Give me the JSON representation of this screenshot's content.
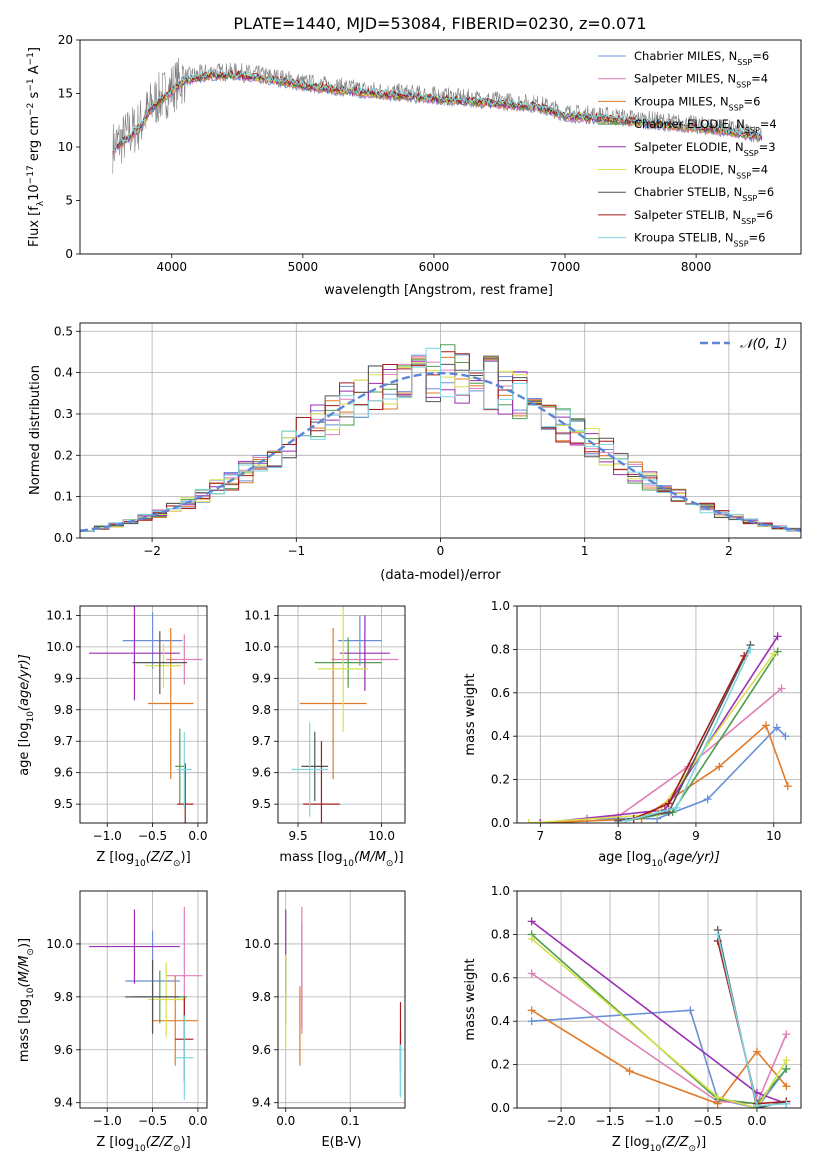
{
  "figure_title": "PLATE=1440, MJD=53084, FIBERID=0230, z=0.071",
  "models": [
    {
      "label": "Chabrier MILES, N",
      "nssp": "6",
      "color": "#6a8fd8"
    },
    {
      "label": "Salpeter MILES, N",
      "nssp": "4",
      "color": "#e07fb6"
    },
    {
      "label": "Kroupa MILES, N",
      "nssp": "6",
      "color": "#e07b2a"
    },
    {
      "label": "Chabrier ELODIE, N",
      "nssp": "4",
      "color": "#4e9e4e"
    },
    {
      "label": "Salpeter ELODIE, N",
      "nssp": "3",
      "color": "#9b2fb5"
    },
    {
      "label": "Kroupa ELODIE, N",
      "nssp": "4",
      "color": "#d8e04a"
    },
    {
      "label": "Chabrier STELIB, N",
      "nssp": "6",
      "color": "#555555"
    },
    {
      "label": "Salpeter STELIB, N",
      "nssp": "6",
      "color": "#a51c1c"
    },
    {
      "label": "Kroupa STELIB, N",
      "nssp": "6",
      "color": "#7fd6e0"
    }
  ],
  "nssp_subscript": "SSP",
  "chart_data": [
    {
      "id": "spectrum",
      "type": "line",
      "title": "",
      "xlabel": "wavelength [Angstrom, rest frame]",
      "ylabel": "Flux [f",
      "ylabel_parts": [
        "Flux [f",
        "λ",
        "10",
        "−17",
        " erg cm",
        "−2",
        " s",
        "−1",
        " A",
        "−1",
        "]"
      ],
      "xlim": [
        3300,
        8800
      ],
      "ylim": [
        0,
        20
      ],
      "xticks": [
        4000,
        5000,
        6000,
        7000,
        8000
      ],
      "yticks": [
        0,
        5,
        10,
        15,
        20
      ],
      "grid": false,
      "legend": "top-right",
      "data_color": "#808080",
      "data_anchors": {
        "x": [
          3550,
          3650,
          3750,
          3850,
          3950,
          4000,
          4100,
          4300,
          4500,
          4800,
          5000,
          5500,
          6000,
          6500,
          6800,
          7000,
          7400,
          7800,
          8200,
          8500
        ],
        "y": [
          10.0,
          11.0,
          12.0,
          14.0,
          15.0,
          15.5,
          16.5,
          17.0,
          17.0,
          16.5,
          16.0,
          15.3,
          14.8,
          14.3,
          14.0,
          13.2,
          12.8,
          12.3,
          11.8,
          11.2
        ]
      }
    },
    {
      "id": "residuals",
      "type": "step",
      "title": "",
      "xlabel": "(data-model)/error",
      "ylabel": "Normed distribution",
      "xlim": [
        -2.5,
        2.5
      ],
      "ylim": [
        0,
        0.52
      ],
      "xticks": [
        -2,
        -1,
        0,
        1,
        2
      ],
      "xticklabels": [
        "−2",
        "−1",
        "0",
        "1",
        "2"
      ],
      "yticks": [
        0.0,
        0.1,
        0.2,
        0.3,
        0.4,
        0.5
      ],
      "yticklabels": [
        "0.0",
        "0.1",
        "0.2",
        "0.3",
        "0.4",
        "0.5"
      ],
      "grid": true,
      "legend": "top-right",
      "gaussian": {
        "label": "𝒩(0, 1)",
        "mean": 0,
        "sigma": 1,
        "color": "#5b87d6"
      },
      "bin_width": 0.1
    },
    {
      "id": "age-vs-Z",
      "type": "errorbar",
      "xlabel": "Z [log",
      "xlabel_parts": [
        "Z [log",
        "10",
        "(Z/Z",
        "⊙",
        ")]"
      ],
      "ylabel": "age  [log",
      "ylabel_parts": [
        "age  [log",
        "10",
        "(age/yr)]"
      ],
      "xlim": [
        -1.3,
        0.1
      ],
      "ylim": [
        9.44,
        10.13
      ],
      "xticks": [
        -1.0,
        -0.5,
        0.0
      ],
      "xticklabels": [
        "−1.0",
        "−0.5",
        "0.0"
      ],
      "yticks": [
        9.5,
        9.6,
        9.7,
        9.8,
        9.9,
        10.0,
        10.1
      ],
      "yticklabels": [
        "9.5",
        "9.6",
        "9.7",
        "9.8",
        "9.9",
        "10.0",
        "10.1"
      ],
      "grid": true,
      "points": [
        {
          "model": 0,
          "x": -0.5,
          "y": 10.02,
          "xerr": 0.33,
          "yerr": 0.09
        },
        {
          "model": 1,
          "x": -0.15,
          "y": 9.96,
          "xerr": 0.2,
          "yerr": 0.08
        },
        {
          "model": 2,
          "x": -0.3,
          "y": 9.82,
          "xerr": 0.25,
          "yerr": 0.24
        },
        {
          "model": 3,
          "x": -0.2,
          "y": 9.62,
          "xerr": 0.05,
          "yerr": 0.12
        },
        {
          "model": 4,
          "x": -0.7,
          "y": 9.98,
          "xerr": 0.5,
          "yerr": 0.15
        },
        {
          "model": 5,
          "x": -0.38,
          "y": 9.94,
          "xerr": 0.2,
          "yerr": 0.07
        },
        {
          "model": 6,
          "x": -0.42,
          "y": 9.95,
          "xerr": 0.3,
          "yerr": 0.1
        },
        {
          "model": 7,
          "x": -0.14,
          "y": 9.5,
          "xerr": 0.09,
          "yerr": 0.13
        },
        {
          "model": 8,
          "x": -0.15,
          "y": 9.61,
          "xerr": 0.08,
          "yerr": 0.12
        }
      ]
    },
    {
      "id": "age-vs-mass",
      "type": "errorbar",
      "xlabel": "mass [log",
      "xlabel_parts": [
        "mass [log",
        "10",
        "(M/M",
        "⊙",
        ")]"
      ],
      "ylabel": "",
      "xlim": [
        9.38,
        10.14
      ],
      "ylim": [
        9.44,
        10.13
      ],
      "xticks": [
        9.5,
        10.0
      ],
      "xticklabels": [
        "9.5",
        "10.0"
      ],
      "yticks": [
        9.5,
        9.6,
        9.7,
        9.8,
        9.9,
        10.0,
        10.1
      ],
      "yticklabels": [
        "9.5",
        "9.6",
        "9.7",
        "9.8",
        "9.9",
        "10.0",
        "10.1"
      ],
      "grid": true,
      "points": [
        {
          "model": 0,
          "x": 9.87,
          "y": 10.02,
          "xerr": 0.13,
          "yerr": 0.08
        },
        {
          "model": 1,
          "x": 9.9,
          "y": 9.96,
          "xerr": 0.2,
          "yerr": 0.08
        },
        {
          "model": 2,
          "x": 9.71,
          "y": 9.82,
          "xerr": 0.2,
          "yerr": 0.24
        },
        {
          "model": 3,
          "x": 9.8,
          "y": 9.95,
          "xerr": 0.2,
          "yerr": 0.08
        },
        {
          "model": 4,
          "x": 9.9,
          "y": 9.98,
          "xerr": 0.15,
          "yerr": 0.12
        },
        {
          "model": 5,
          "x": 9.77,
          "y": 9.93,
          "xerr": 0.15,
          "yerr": 0.2
        },
        {
          "model": 6,
          "x": 9.6,
          "y": 9.62,
          "xerr": 0.08,
          "yerr": 0.11
        },
        {
          "model": 7,
          "x": 9.64,
          "y": 9.5,
          "xerr": 0.11,
          "yerr": 0.2
        },
        {
          "model": 8,
          "x": 9.57,
          "y": 9.61,
          "xerr": 0.11,
          "yerr": 0.15
        }
      ]
    },
    {
      "id": "massweight-vs-age",
      "type": "line",
      "xlabel": "age  [log",
      "xlabel_parts": [
        "age  [log",
        "10",
        "(age/yr)]"
      ],
      "ylabel": "mass weight",
      "xlim": [
        6.7,
        10.35
      ],
      "ylim": [
        0,
        1.0
      ],
      "xticks": [
        7,
        8,
        9,
        10
      ],
      "xticklabels": [
        "7",
        "8",
        "9",
        "10"
      ],
      "yticks": [
        0.0,
        0.2,
        0.4,
        0.6,
        0.8,
        1.0
      ],
      "yticklabels": [
        "0.0",
        "0.2",
        "0.4",
        "0.6",
        "0.8",
        "1.0"
      ],
      "grid": true,
      "series": [
        {
          "model": 0,
          "x": [
            7.6,
            8.5,
            9.15,
            10.04,
            10.15
          ],
          "y": [
            0.02,
            0.02,
            0.11,
            0.44,
            0.4
          ]
        },
        {
          "model": 1,
          "x": [
            7.0,
            8.0,
            8.9,
            10.1
          ],
          "y": [
            0.0,
            0.03,
            0.26,
            0.62
          ]
        },
        {
          "model": 2,
          "x": [
            7.0,
            8.3,
            9.3,
            9.9,
            10.18
          ],
          "y": [
            0.0,
            0.02,
            0.26,
            0.45,
            0.17
          ]
        },
        {
          "model": 3,
          "x": [
            8.1,
            8.7,
            10.05
          ],
          "y": [
            0.01,
            0.05,
            0.79
          ]
        },
        {
          "model": 4,
          "x": [
            7.0,
            8.6,
            10.05
          ],
          "y": [
            0.0,
            0.06,
            0.86
          ]
        },
        {
          "model": 5,
          "x": [
            6.85,
            8.5,
            10.0
          ],
          "y": [
            0.0,
            0.04,
            0.78
          ]
        },
        {
          "model": 6,
          "x": [
            8.0,
            8.65,
            9.7
          ],
          "y": [
            0.01,
            0.05,
            0.82
          ]
        },
        {
          "model": 7,
          "x": [
            8.2,
            8.65,
            9.62
          ],
          "y": [
            0.02,
            0.09,
            0.77
          ]
        },
        {
          "model": 8,
          "x": [
            8.1,
            8.75,
            9.7
          ],
          "y": [
            0.01,
            0.07,
            0.8
          ]
        }
      ]
    },
    {
      "id": "mass-vs-Z",
      "type": "errorbar",
      "xlabel": "Z [log",
      "xlabel_parts": [
        "Z [log",
        "10",
        "(Z/Z",
        "⊙",
        ")]"
      ],
      "ylabel": "mass [log",
      "ylabel_parts": [
        "mass [log",
        "10",
        "(M/M",
        "⊙",
        ")]"
      ],
      "xlim": [
        -1.3,
        0.1
      ],
      "ylim": [
        9.38,
        10.2
      ],
      "xticks": [
        -1.0,
        -0.5,
        0.0
      ],
      "xticklabels": [
        "−1.0",
        "−0.5",
        "0.0"
      ],
      "yticks": [
        9.4,
        9.6,
        9.8,
        10.0
      ],
      "yticklabels": [
        "9.4",
        "9.6",
        "9.8",
        "10.0"
      ],
      "grid": true,
      "points": [
        {
          "model": 0,
          "x": -0.5,
          "y": 9.86,
          "xerr": 0.3,
          "yerr": 0.19
        },
        {
          "model": 1,
          "x": -0.15,
          "y": 9.88,
          "xerr": 0.2,
          "yerr": 0.26
        },
        {
          "model": 2,
          "x": -0.25,
          "y": 9.71,
          "xerr": 0.25,
          "yerr": 0.17
        },
        {
          "model": 3,
          "x": -0.42,
          "y": 9.8,
          "xerr": 0.3,
          "yerr": 0.1
        },
        {
          "model": 4,
          "x": -0.7,
          "y": 9.99,
          "xerr": 0.5,
          "yerr": 0.14
        },
        {
          "model": 5,
          "x": -0.35,
          "y": 9.79,
          "xerr": 0.2,
          "yerr": 0.14
        },
        {
          "model": 6,
          "x": -0.5,
          "y": 9.8,
          "xerr": 0.3,
          "yerr": 0.14
        },
        {
          "model": 7,
          "x": -0.15,
          "y": 9.64,
          "xerr": 0.1,
          "yerr": 0.16
        },
        {
          "model": 8,
          "x": -0.15,
          "y": 9.57,
          "xerr": 0.1,
          "yerr": 0.16
        }
      ]
    },
    {
      "id": "mass-vs-ebv",
      "type": "errorbar",
      "xlabel": "E(B-V)",
      "ylabel": "",
      "xlim": [
        -0.012,
        0.185
      ],
      "ylim": [
        9.38,
        10.2
      ],
      "xticks": [
        0.0,
        0.1
      ],
      "xticklabels": [
        "0.0",
        "0.1"
      ],
      "yticks": [
        9.4,
        9.6,
        9.8,
        10.0
      ],
      "yticklabels": [
        "9.4",
        "9.6",
        "9.8",
        "10.0"
      ],
      "grid": true,
      "points": [
        {
          "model": 0,
          "x": 0.025,
          "y": 9.88,
          "xerr": 0,
          "yerr": 0.2
        },
        {
          "model": 1,
          "x": 0.025,
          "y": 9.9,
          "xerr": 0,
          "yerr": 0.24
        },
        {
          "model": 2,
          "x": 0.022,
          "y": 9.69,
          "xerr": 0,
          "yerr": 0.15
        },
        {
          "model": 3,
          "x": 0.0,
          "y": 9.82,
          "xerr": 0,
          "yerr": 0.12
        },
        {
          "model": 4,
          "x": 0.0,
          "y": 9.97,
          "xerr": 0,
          "yerr": 0.16
        },
        {
          "model": 5,
          "x": 0.0,
          "y": 9.78,
          "xerr": 0,
          "yerr": 0.18
        },
        {
          "model": 6,
          "x": 0.178,
          "y": 9.55,
          "xerr": 0,
          "yerr": 0.12
        },
        {
          "model": 7,
          "x": 0.178,
          "y": 9.65,
          "xerr": 0,
          "yerr": 0.13
        },
        {
          "model": 8,
          "x": 0.178,
          "y": 9.52,
          "xerr": 0,
          "yerr": 0.1
        }
      ]
    },
    {
      "id": "massweight-vs-Z",
      "type": "line",
      "xlabel": "Z [log",
      "xlabel_parts": [
        "Z [log",
        "10",
        "(Z/Z",
        "⊙",
        ")]"
      ],
      "ylabel": "mass weight",
      "xlim": [
        -2.45,
        0.45
      ],
      "ylim": [
        0,
        1.0
      ],
      "xticks": [
        -2.0,
        -1.5,
        -1.0,
        -0.5,
        0.0
      ],
      "xticklabels": [
        "−2.0",
        "−1.5",
        "−1.0",
        "−0.5",
        "0.0"
      ],
      "yticks": [
        0.0,
        0.2,
        0.4,
        0.6,
        0.8,
        1.0
      ],
      "yticklabels": [
        "0.0",
        "0.2",
        "0.4",
        "0.6",
        "0.8",
        "1.0"
      ],
      "grid": true,
      "series": [
        {
          "model": 0,
          "x": [
            -2.3,
            -0.68,
            -0.4,
            0.0,
            0.3
          ],
          "y": [
            0.4,
            0.45,
            0.04,
            0.0,
            0.18
          ]
        },
        {
          "model": 1,
          "x": [
            -2.3,
            -0.4,
            0.0,
            0.3
          ],
          "y": [
            0.62,
            0.03,
            0.02,
            0.34
          ]
        },
        {
          "model": 2,
          "x": [
            -2.3,
            -1.3,
            -0.4,
            0.0,
            0.3
          ],
          "y": [
            0.45,
            0.17,
            0.02,
            0.26,
            0.1
          ]
        },
        {
          "model": 3,
          "x": [
            -2.3,
            -0.4,
            0.0,
            0.3
          ],
          "y": [
            0.8,
            0.04,
            0.02,
            0.18
          ]
        },
        {
          "model": 4,
          "x": [
            -2.3,
            0.0,
            0.3
          ],
          "y": [
            0.86,
            0.07,
            0.02
          ]
        },
        {
          "model": 5,
          "x": [
            -2.3,
            -0.4,
            0.0,
            0.3
          ],
          "y": [
            0.78,
            0.05,
            0.0,
            0.22
          ]
        },
        {
          "model": 6,
          "x": [
            -0.4,
            0.0,
            0.3
          ],
          "y": [
            0.82,
            0.0,
            0.03
          ]
        },
        {
          "model": 7,
          "x": [
            -0.4,
            0.0,
            0.3
          ],
          "y": [
            0.77,
            0.02,
            0.03
          ]
        },
        {
          "model": 8,
          "x": [
            -0.4,
            0.0,
            0.3
          ],
          "y": [
            0.8,
            0.01,
            0.02
          ]
        }
      ]
    }
  ]
}
